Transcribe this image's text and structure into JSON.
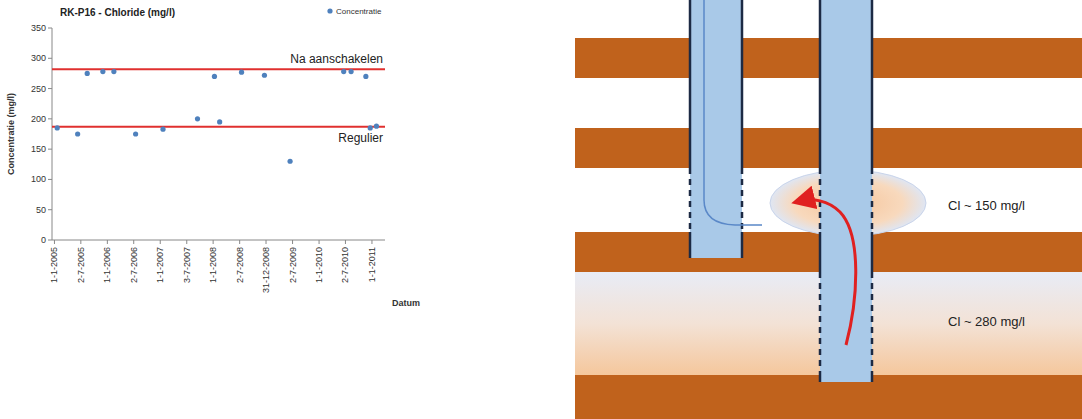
{
  "chart_data": {
    "type": "scatter",
    "title": "RK-P16 - Chloride (mg/l)",
    "x_label": "Datum",
    "y_label": "Concentratie (mg/l)",
    "series": [
      {
        "name": "Concentratie",
        "color": "#4f81bd",
        "marker": "circle",
        "x": [
          "2005-01-20",
          "2005-06-10",
          "2005-08-15",
          "2005-12-01",
          "2006-02-15",
          "2006-07-15",
          "2007-01-20",
          "2007-09-15",
          "2008-01-10",
          "2008-02-15",
          "2008-07-15",
          "2008-12-20",
          "2009-06-15",
          "2010-06-20",
          "2010-08-10",
          "2010-11-20",
          "2010-12-20",
          "2011-02-01"
        ],
        "values": [
          185,
          175,
          275,
          278,
          278,
          175,
          183,
          200,
          270,
          195,
          277,
          272,
          130,
          278,
          278,
          270,
          185,
          188
        ]
      }
    ],
    "xlim": [
      "2004-12-15",
      "2011-04-01"
    ],
    "xticks": [
      {
        "value": "2005-01-01",
        "label": "1-1-2005"
      },
      {
        "value": "2005-07-02",
        "label": "2-7-2005"
      },
      {
        "value": "2006-01-01",
        "label": "1-1-2006"
      },
      {
        "value": "2006-07-02",
        "label": "2-7-2006"
      },
      {
        "value": "2007-01-01",
        "label": "1-1-2007"
      },
      {
        "value": "2007-07-03",
        "label": "3-7-2007"
      },
      {
        "value": "2008-01-01",
        "label": "1-1-2008"
      },
      {
        "value": "2008-07-02",
        "label": "2-7-2008"
      },
      {
        "value": "2008-12-31",
        "label": "31-12-2008"
      },
      {
        "value": "2009-07-02",
        "label": "2-7-2009"
      },
      {
        "value": "2010-01-01",
        "label": "1-1-2010"
      },
      {
        "value": "2010-07-02",
        "label": "2-7-2010"
      },
      {
        "value": "2011-01-01",
        "label": "1-1-2011"
      }
    ],
    "ylim": [
      0,
      350
    ],
    "yticks": [
      0,
      50,
      100,
      150,
      200,
      250,
      300,
      350
    ],
    "legend": "top-right",
    "grid": false,
    "annotations": [
      {
        "text": "Na aanschakelen",
        "value": 282,
        "color": "#e0302f"
      },
      {
        "text": "Regulier",
        "value": 187,
        "color": "#e0302f"
      }
    ]
  },
  "diagram": {
    "layers": [
      {
        "label": "Cl ~ 150 mg/l"
      },
      {
        "label": "Cl ~ 280 mg/l"
      }
    ]
  }
}
